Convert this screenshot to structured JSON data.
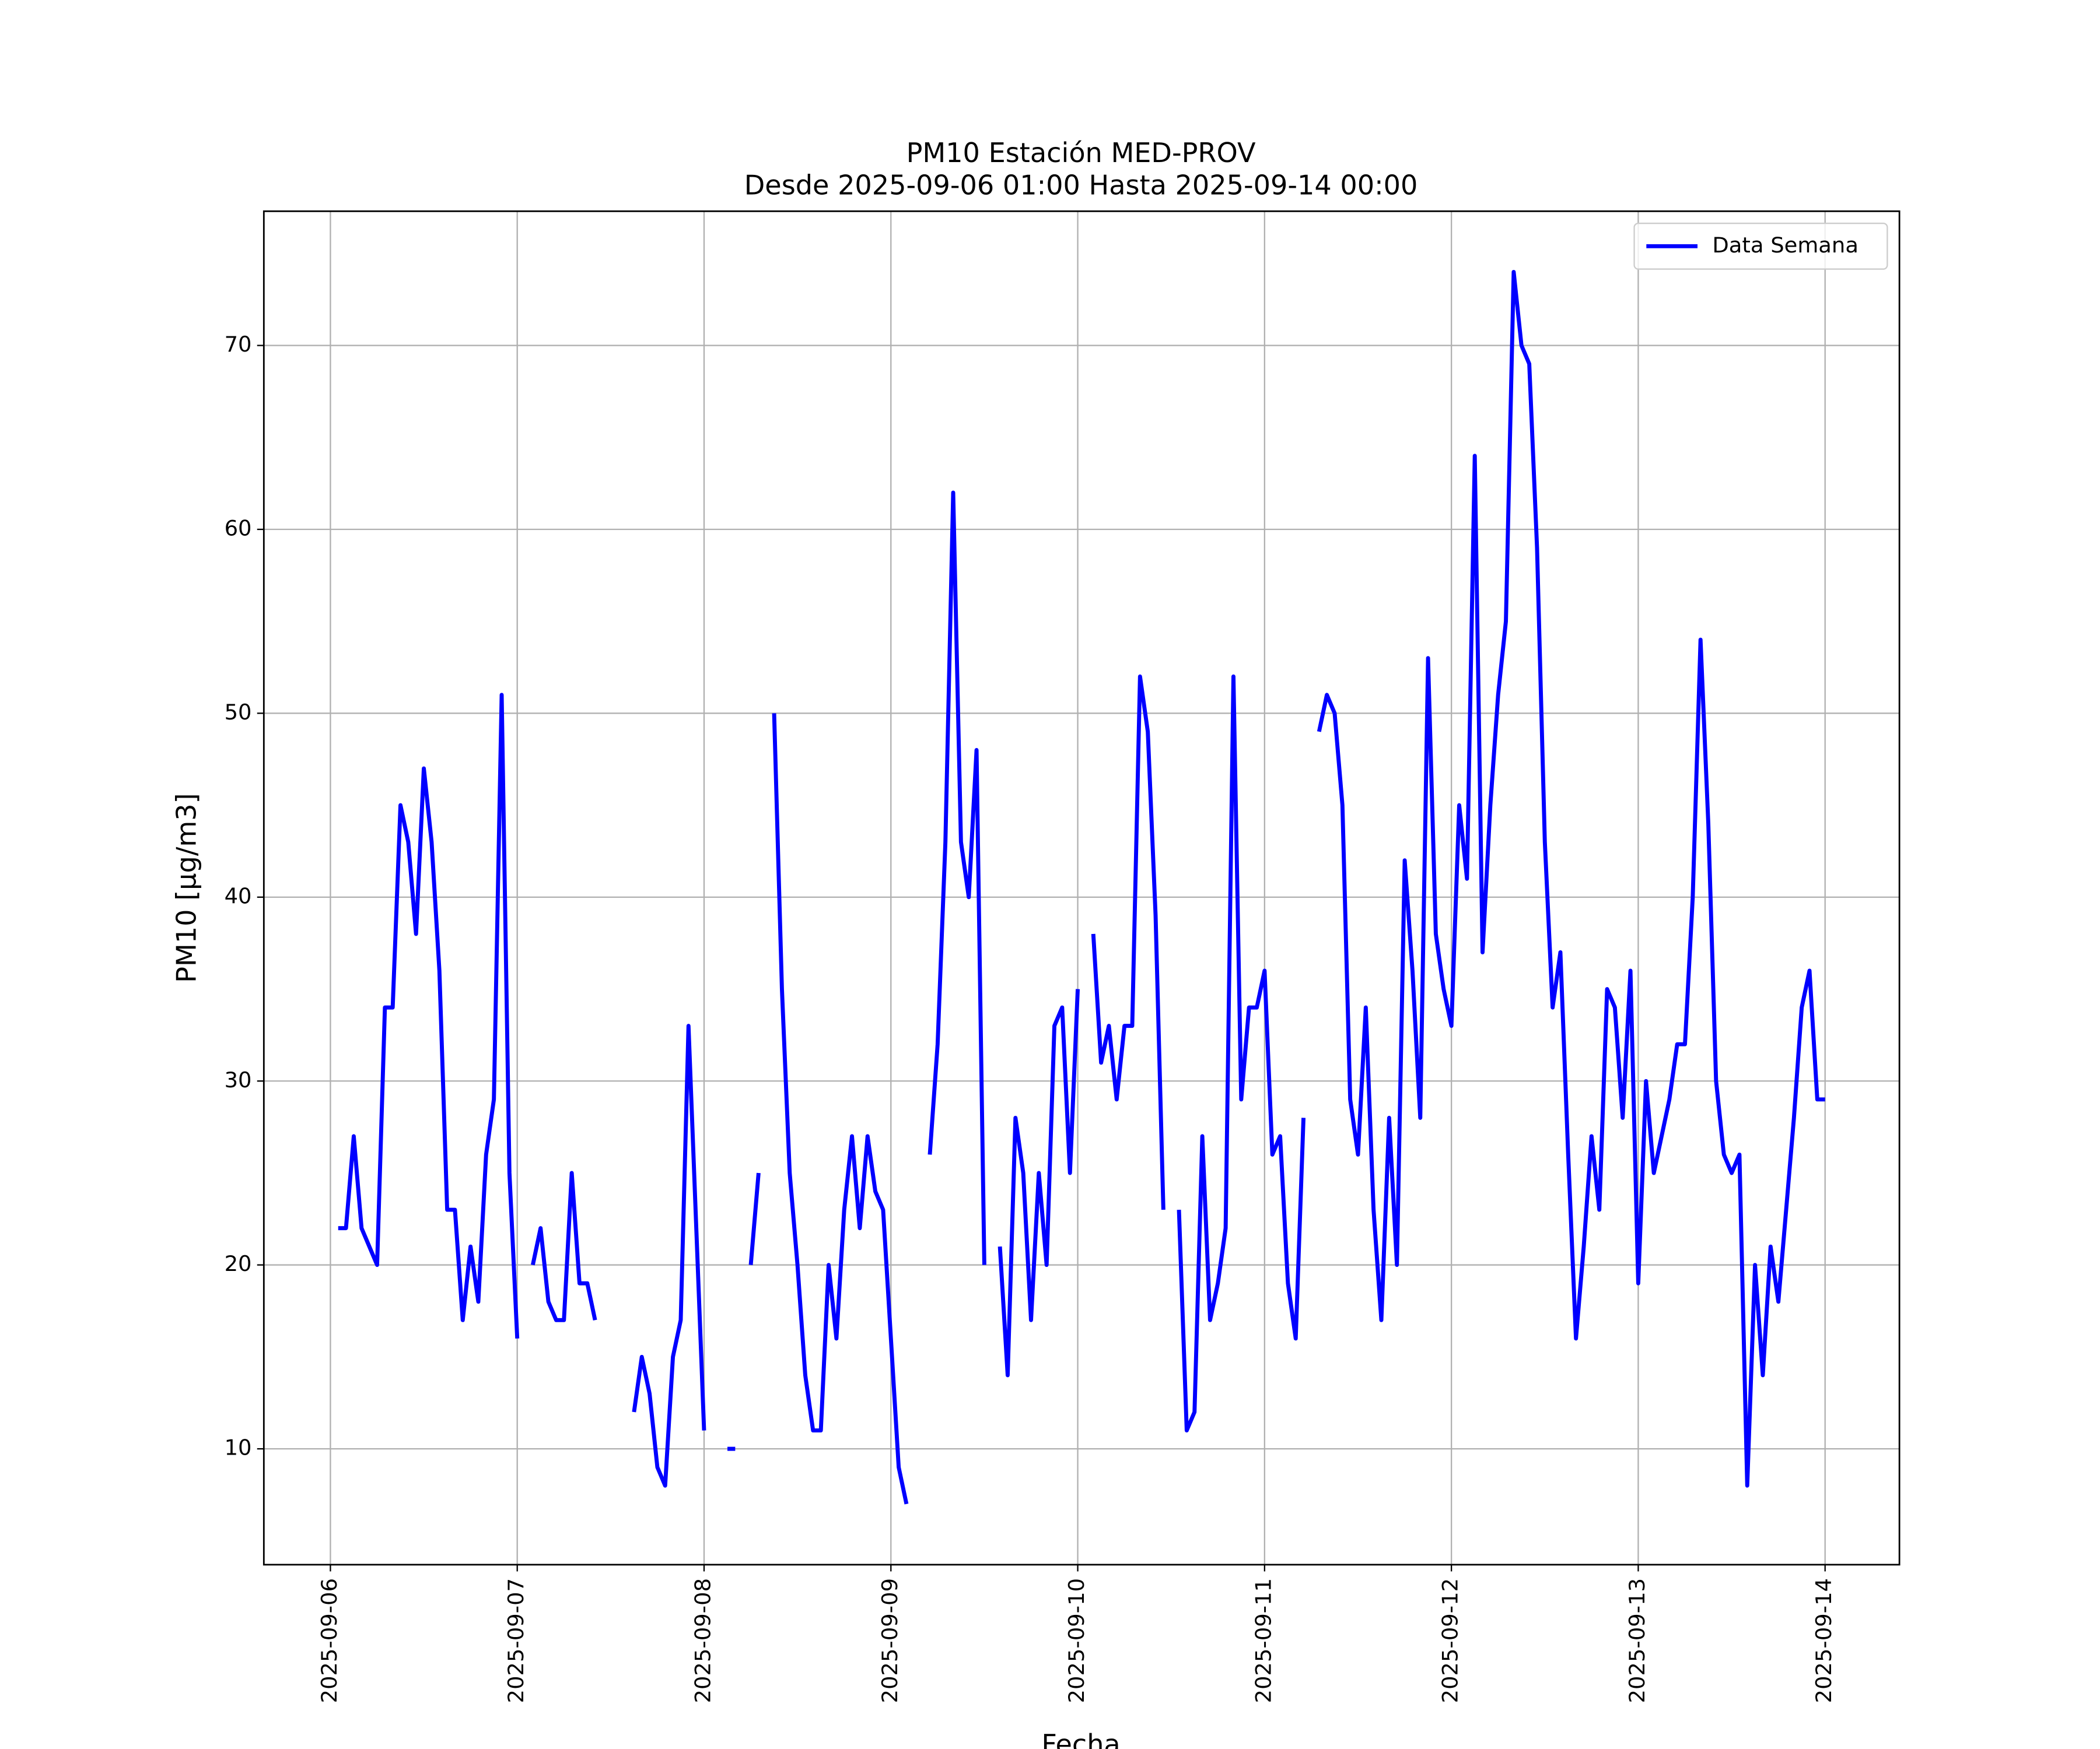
{
  "chart_data": {
    "type": "line",
    "title": "PM10 Estación MED-PROV",
    "subtitle": "Desde 2025-09-06 01:00 Hasta 2025-09-14 00:00",
    "x_label": "Fecha",
    "y_label": "PM10 [μg/m3]",
    "xlim": [
      "2025-09-05 15:27",
      "2025-09-14 09:33"
    ],
    "xticks": [
      "2025-09-06",
      "2025-09-07",
      "2025-09-08",
      "2025-09-09",
      "2025-09-10",
      "2025-09-11",
      "2025-09-12",
      "2025-09-13",
      "2025-09-14"
    ],
    "ylim": [
      3.7,
      77.3
    ],
    "yticks": [
      10,
      20,
      30,
      40,
      50,
      60,
      70
    ],
    "grid": true,
    "legend": "upper right",
    "x": [
      "2025-09-06 01:00",
      "2025-09-06 02:00",
      "2025-09-06 03:00",
      "2025-09-06 04:00",
      "2025-09-06 05:00",
      "2025-09-06 06:00",
      "2025-09-06 07:00",
      "2025-09-06 08:00",
      "2025-09-06 09:00",
      "2025-09-06 10:00",
      "2025-09-06 11:00",
      "2025-09-06 12:00",
      "2025-09-06 13:00",
      "2025-09-06 14:00",
      "2025-09-06 15:00",
      "2025-09-06 16:00",
      "2025-09-06 17:00",
      "2025-09-06 18:00",
      "2025-09-06 19:00",
      "2025-09-06 20:00",
      "2025-09-06 21:00",
      "2025-09-06 22:00",
      "2025-09-06 23:00",
      "2025-09-07 00:00",
      "2025-09-07 01:00",
      "2025-09-07 02:00",
      "2025-09-07 03:00",
      "2025-09-07 04:00",
      "2025-09-07 05:00",
      "2025-09-07 06:00",
      "2025-09-07 07:00",
      "2025-09-07 08:00",
      "2025-09-07 09:00",
      "2025-09-07 10:00",
      "2025-09-07 11:00",
      "2025-09-07 12:00",
      "2025-09-07 13:00",
      "2025-09-07 14:00",
      "2025-09-07 15:00",
      "2025-09-07 16:00",
      "2025-09-07 17:00",
      "2025-09-07 18:00",
      "2025-09-07 19:00",
      "2025-09-07 20:00",
      "2025-09-07 21:00",
      "2025-09-07 22:00",
      "2025-09-07 23:00",
      "2025-09-08 00:00",
      "2025-09-08 01:00",
      "2025-09-08 02:00",
      "2025-09-08 03:00",
      "2025-09-08 04:00",
      "2025-09-08 05:00",
      "2025-09-08 06:00",
      "2025-09-08 07:00",
      "2025-09-08 08:00",
      "2025-09-08 09:00",
      "2025-09-08 10:00",
      "2025-09-08 11:00",
      "2025-09-08 12:00",
      "2025-09-08 13:00",
      "2025-09-08 14:00",
      "2025-09-08 15:00",
      "2025-09-08 16:00",
      "2025-09-08 17:00",
      "2025-09-08 18:00",
      "2025-09-08 19:00",
      "2025-09-08 20:00",
      "2025-09-08 21:00",
      "2025-09-08 22:00",
      "2025-09-08 23:00",
      "2025-09-09 00:00",
      "2025-09-09 01:00",
      "2025-09-09 02:00",
      "2025-09-09 03:00",
      "2025-09-09 04:00",
      "2025-09-09 05:00",
      "2025-09-09 06:00",
      "2025-09-09 07:00",
      "2025-09-09 08:00",
      "2025-09-09 09:00",
      "2025-09-09 10:00",
      "2025-09-09 11:00",
      "2025-09-09 12:00",
      "2025-09-09 13:00",
      "2025-09-09 14:00",
      "2025-09-09 15:00",
      "2025-09-09 16:00",
      "2025-09-09 17:00",
      "2025-09-09 18:00",
      "2025-09-09 19:00",
      "2025-09-09 20:00",
      "2025-09-09 21:00",
      "2025-09-09 22:00",
      "2025-09-09 23:00",
      "2025-09-10 00:00",
      "2025-09-10 01:00",
      "2025-09-10 02:00",
      "2025-09-10 03:00",
      "2025-09-10 04:00",
      "2025-09-10 05:00",
      "2025-09-10 06:00",
      "2025-09-10 07:00",
      "2025-09-10 08:00",
      "2025-09-10 09:00",
      "2025-09-10 10:00",
      "2025-09-10 11:00",
      "2025-09-10 12:00",
      "2025-09-10 13:00",
      "2025-09-10 14:00",
      "2025-09-10 15:00",
      "2025-09-10 16:00",
      "2025-09-10 17:00",
      "2025-09-10 18:00",
      "2025-09-10 19:00",
      "2025-09-10 20:00",
      "2025-09-10 21:00",
      "2025-09-10 22:00",
      "2025-09-10 23:00",
      "2025-09-11 00:00",
      "2025-09-11 01:00",
      "2025-09-11 02:00",
      "2025-09-11 03:00",
      "2025-09-11 04:00",
      "2025-09-11 05:00",
      "2025-09-11 06:00",
      "2025-09-11 07:00",
      "2025-09-11 08:00",
      "2025-09-11 09:00",
      "2025-09-11 10:00",
      "2025-09-11 11:00",
      "2025-09-11 12:00",
      "2025-09-11 13:00",
      "2025-09-11 14:00",
      "2025-09-11 15:00",
      "2025-09-11 16:00",
      "2025-09-11 17:00",
      "2025-09-11 18:00",
      "2025-09-11 19:00",
      "2025-09-11 20:00",
      "2025-09-11 21:00",
      "2025-09-11 22:00",
      "2025-09-11 23:00",
      "2025-09-12 00:00",
      "2025-09-12 01:00",
      "2025-09-12 02:00",
      "2025-09-12 03:00",
      "2025-09-12 04:00",
      "2025-09-12 05:00",
      "2025-09-12 06:00",
      "2025-09-12 07:00",
      "2025-09-12 08:00",
      "2025-09-12 09:00",
      "2025-09-12 10:00",
      "2025-09-12 11:00",
      "2025-09-12 12:00",
      "2025-09-12 13:00",
      "2025-09-12 14:00",
      "2025-09-12 15:00",
      "2025-09-12 16:00",
      "2025-09-12 17:00",
      "2025-09-12 18:00",
      "2025-09-12 19:00",
      "2025-09-12 20:00",
      "2025-09-12 21:00",
      "2025-09-12 22:00",
      "2025-09-12 23:00",
      "2025-09-13 00:00",
      "2025-09-13 01:00",
      "2025-09-13 02:00",
      "2025-09-13 03:00",
      "2025-09-13 04:00",
      "2025-09-13 05:00",
      "2025-09-13 06:00",
      "2025-09-13 07:00",
      "2025-09-13 08:00",
      "2025-09-13 09:00",
      "2025-09-13 10:00",
      "2025-09-13 11:00",
      "2025-09-13 12:00",
      "2025-09-13 13:00",
      "2025-09-13 14:00",
      "2025-09-13 15:00",
      "2025-09-13 16:00",
      "2025-09-13 17:00",
      "2025-09-13 18:00",
      "2025-09-13 19:00",
      "2025-09-13 20:00",
      "2025-09-13 21:00",
      "2025-09-13 22:00",
      "2025-09-13 23:00",
      "2025-09-14 00:00"
    ],
    "series": [
      {
        "name": "Data Semana",
        "color": "#0000ff",
        "values": [
          22,
          22,
          27,
          22,
          21,
          20,
          34,
          34,
          45,
          43,
          38,
          47,
          43,
          36,
          23,
          23,
          17,
          21,
          18,
          26,
          29,
          51,
          25,
          16,
          null,
          20,
          22,
          18,
          17,
          17,
          25,
          19,
          19,
          17,
          null,
          null,
          null,
          null,
          12,
          15,
          13,
          9,
          8,
          15,
          17,
          33,
          22,
          11,
          null,
          null,
          10,
          10,
          null,
          20,
          25,
          null,
          50,
          35,
          25,
          20,
          14,
          11,
          11,
          20,
          16,
          23,
          27,
          22,
          27,
          24,
          23,
          16,
          9,
          7,
          null,
          null,
          26,
          32,
          43,
          62,
          43,
          40,
          48,
          20,
          null,
          21,
          14,
          28,
          25,
          17,
          25,
          20,
          33,
          34,
          25,
          35,
          null,
          38,
          31,
          33,
          29,
          33,
          33,
          52,
          49,
          39,
          23,
          null,
          23,
          11,
          12,
          27,
          17,
          19,
          22,
          52,
          29,
          34,
          34,
          36,
          26,
          27,
          19,
          16,
          28,
          null,
          49,
          51,
          50,
          45,
          29,
          26,
          34,
          23,
          17,
          28,
          20,
          42,
          36,
          28,
          53,
          38,
          35,
          33,
          45,
          41,
          64,
          37,
          45,
          51,
          55,
          74,
          70,
          69,
          59,
          43,
          34,
          37,
          26,
          16,
          21,
          27,
          23,
          35,
          34,
          28,
          36,
          19,
          30,
          25,
          27,
          29,
          32,
          32,
          40,
          54,
          44,
          30,
          26,
          25,
          26,
          8,
          20,
          14,
          21,
          18,
          23,
          28,
          34,
          36,
          29,
          29
        ]
      }
    ]
  }
}
